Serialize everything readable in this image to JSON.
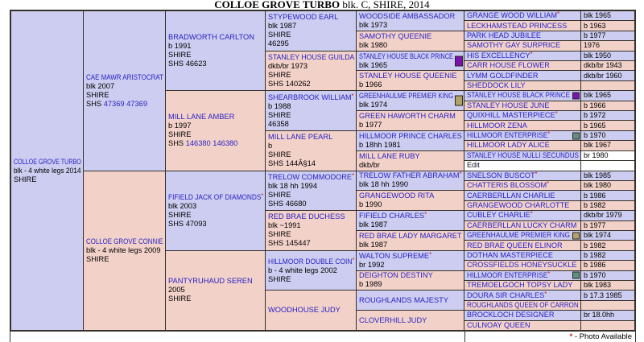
{
  "title": {
    "bold": "COLLOE GROVE TURBO",
    "rest": " blk. C, SHIRE, 2014"
  },
  "legend": {
    "star": "*",
    "text": " - Photo Available"
  },
  "colors": {
    "sire_bg": "#cccdf0",
    "dam_bg": "#f2d1c9",
    "border": "#34302a",
    "link": "#2a23c4",
    "star": "#cc2222",
    "square_purple": "#7b12b0",
    "square_teal": "#5f9181",
    "square_tan": "#b3a266"
  },
  "pedigree": {
    "cells": [
      {
        "col": 0,
        "row": 0,
        "span": 32,
        "sex": "s",
        "name": "COLLOE GROVE TURBO",
        "lines": [
          "blk - 4 white legs 2014",
          "SHIRE"
        ]
      },
      {
        "col": 1,
        "row": 0,
        "span": 16,
        "sex": "s",
        "name": "CAE MAWR ARISTOCRAT",
        "lines": [
          "blk 2007",
          "SHIRE",
          {
            "t": "SHS ",
            "link": "47369 47369"
          }
        ]
      },
      {
        "col": 1,
        "row": 16,
        "span": 16,
        "sex": "d",
        "name": "COLLOE GROVE CONNIE",
        "lines": [
          "blk - 4 white legs 2009",
          "SHIRE"
        ]
      },
      {
        "col": 2,
        "row": 0,
        "span": 8,
        "sex": "s",
        "name": "BRADWORTH CARLTON",
        "lines": [
          "b 1991",
          "SHIRE",
          "SHS 46623"
        ]
      },
      {
        "col": 2,
        "row": 8,
        "span": 8,
        "sex": "d",
        "name": "MILL LANE AMBER",
        "lines": [
          "b 1997",
          "SHIRE",
          {
            "t": "SHS ",
            "link": "146380 146380"
          }
        ]
      },
      {
        "col": 2,
        "row": 16,
        "span": 8,
        "sex": "s",
        "name": "FIFIELD JACK OF DIAMONDS",
        "star": true,
        "lines": [
          "blk 2003",
          "SHIRE",
          "SHS 47093"
        ]
      },
      {
        "col": 2,
        "row": 24,
        "span": 8,
        "sex": "d",
        "name": "PANTYRUHAUD SEREN",
        "lines": [
          "2005",
          "SHIRE"
        ]
      },
      {
        "col": 3,
        "row": 0,
        "span": 4,
        "sex": "s",
        "name": "STYPEWOOD EARL",
        "lines": [
          "blk 1987",
          "SHIRE",
          "46295"
        ]
      },
      {
        "col": 3,
        "row": 4,
        "span": 4,
        "sex": "d",
        "name": "STANLEY HOUSE GUILDA",
        "lines": [
          "dkb/br 1973",
          "SHIRE",
          "SHS 140262"
        ]
      },
      {
        "col": 3,
        "row": 8,
        "span": 4,
        "sex": "s",
        "name": "SHEARBROOK WILLIAM",
        "star": true,
        "lines": [
          "b 1988",
          "SHIRE",
          "46358"
        ]
      },
      {
        "col": 3,
        "row": 12,
        "span": 4,
        "sex": "d",
        "name": "MILL LANE PEARL",
        "lines": [
          "b",
          "SHIRE",
          "SHS 144Â§14"
        ]
      },
      {
        "col": 3,
        "row": 16,
        "span": 4,
        "sex": "s",
        "name": "TRELOW COMMODORE",
        "star": true,
        "lines": [
          "blk 18 hh 1994",
          "SHIRE",
          "SHS 46680"
        ]
      },
      {
        "col": 3,
        "row": 20,
        "span": 4,
        "sex": "d",
        "name": "RED BRAE DUCHESS",
        "lines": [
          "blk ~1991",
          "SHIRE",
          "SHS 145447"
        ]
      },
      {
        "col": 3,
        "row": 24,
        "span": 4,
        "sex": "s",
        "name": "HILLMOOR DOUBLE COIN",
        "star": true,
        "lines": [
          "b - 4 white legs 2002",
          "SHIRE"
        ]
      },
      {
        "col": 3,
        "row": 28,
        "span": 4,
        "sex": "d",
        "name": "WOODHOUSE JUDY",
        "lines": []
      },
      {
        "col": 4,
        "row": 0,
        "span": 2,
        "sex": "s",
        "name": "WOODSIDE AMBASSADOR",
        "lines": [
          "blk 1973"
        ]
      },
      {
        "col": 4,
        "row": 2,
        "span": 2,
        "sex": "d",
        "name": "SAMOTHY QUEENIE",
        "lines": [
          "blk 1980"
        ]
      },
      {
        "col": 4,
        "row": 4,
        "span": 2,
        "sex": "s",
        "name": "STANLEY HOUSE BLACK PRINCE",
        "lines": [
          "blk 1965"
        ],
        "square": "purple"
      },
      {
        "col": 4,
        "row": 6,
        "span": 2,
        "sex": "d",
        "name": "STANLEY HOUSE QUEENIE",
        "lines": [
          "b 1966"
        ]
      },
      {
        "col": 4,
        "row": 8,
        "span": 2,
        "sex": "s",
        "name": "GREENHAULME PREMIER KING",
        "lines": [
          "blk 1974"
        ],
        "square": "tan"
      },
      {
        "col": 4,
        "row": 10,
        "span": 2,
        "sex": "d",
        "name": "GREEN HAWORTH CHARM",
        "lines": [
          "b 1977"
        ]
      },
      {
        "col": 4,
        "row": 12,
        "span": 2,
        "sex": "s",
        "name": "HILLMOOR PRINCE CHARLES",
        "lines": [
          "b 18hh 1981"
        ]
      },
      {
        "col": 4,
        "row": 14,
        "span": 2,
        "sex": "d",
        "name": "MILL LANE RUBY",
        "lines": [
          "dkb/br"
        ]
      },
      {
        "col": 4,
        "row": 16,
        "span": 2,
        "sex": "s",
        "name": "TRELOW FATHER ABRAHAM",
        "star": true,
        "lines": [
          "blk 18 hh 1990"
        ]
      },
      {
        "col": 4,
        "row": 18,
        "span": 2,
        "sex": "d",
        "name": "GRANGEWOOD RITA",
        "lines": [
          "b 1990"
        ]
      },
      {
        "col": 4,
        "row": 20,
        "span": 2,
        "sex": "s",
        "name": "FIFIELD CHARLES",
        "star": true,
        "lines": [
          "blk 1987"
        ]
      },
      {
        "col": 4,
        "row": 22,
        "span": 2,
        "sex": "d",
        "name": "RED BRAE LADY MARGARET",
        "lines": [
          "blk 1987"
        ]
      },
      {
        "col": 4,
        "row": 24,
        "span": 2,
        "sex": "s",
        "name": "WALTON SUPREME",
        "star": true,
        "lines": [
          "br 1992"
        ]
      },
      {
        "col": 4,
        "row": 26,
        "span": 2,
        "sex": "d",
        "name": "DEIGHTON DESTINY",
        "lines": [
          "b 1989"
        ]
      },
      {
        "col": 4,
        "row": 28,
        "span": 2,
        "sex": "s",
        "name": "ROUGHLANDS MAJESTY",
        "lines": []
      },
      {
        "col": 4,
        "row": 30,
        "span": 2,
        "sex": "d",
        "name": "CLOVERHILL JUDY",
        "lines": []
      }
    ],
    "gen5": [
      {
        "name": "GRANGE WOOD WILLIAM",
        "star": true,
        "sex": "s",
        "year": "blk 1965"
      },
      {
        "name": "LECKHAMSTEAD PRINCESS",
        "sex": "d",
        "year": "b 1963"
      },
      {
        "name": "PARK HEAD JUBILEE",
        "sex": "s",
        "year": "b 1977"
      },
      {
        "name": "SAMOTHY GAY SURPRICE",
        "sex": "d",
        "year": "1976"
      },
      {
        "name": "HIS EXCELLENCY",
        "star": true,
        "sex": "s",
        "year": "blk 1950"
      },
      {
        "name": "CARR HOUSE FLOWER",
        "sex": "d",
        "year": "dkb/br 1943"
      },
      {
        "name": "LYMM GOLDFINDER",
        "sex": "s",
        "year": "dkb/br 1960"
      },
      {
        "name": "SHEDDOCK LILY",
        "sex": "d",
        "year": ""
      },
      {
        "name": "STANLEY HOUSE BLACK PRINCE",
        "sex": "s",
        "year": "blk 1965",
        "square": "purple"
      },
      {
        "name": "STANLEY HOUSE JUNE",
        "sex": "d",
        "year": "b 1966"
      },
      {
        "name": "QUIXHILL MASTERPIECE",
        "star": true,
        "sex": "s",
        "year": "b 1972"
      },
      {
        "name": "HILLMOOR ZENA",
        "sex": "d",
        "year": "b 1965"
      },
      {
        "name": "HILLMOOR ENTERPRISE",
        "star": true,
        "sex": "s",
        "year": "b 1970",
        "square": "teal"
      },
      {
        "name": "HILLMOOR LADY ALICE",
        "sex": "d",
        "year": "blk 1967"
      },
      {
        "name": "STANLEY HOUSE NULLI SECUNDUS",
        "sex": "s",
        "year": "br 1980",
        "year_white": true
      },
      {
        "name": "Edit",
        "sex": "w",
        "year": "",
        "edit": true
      },
      {
        "name": "SNELSON BUSCOT",
        "star": true,
        "sex": "s",
        "year": "blk 1985"
      },
      {
        "name": "CHATTERIS BLOSSOM",
        "star": true,
        "sex": "d",
        "year": "blk 1980"
      },
      {
        "name": "CAERBERLLAN CHARLIE",
        "sex": "s",
        "year": "b 1986"
      },
      {
        "name": "GRANGEWOOD CHARLOTTE",
        "sex": "d",
        "year": "b 1982"
      },
      {
        "name": "CUBLEY CHARLIE",
        "star": true,
        "sex": "s",
        "year": "dkb/br 1979"
      },
      {
        "name": "CAERBERLLAN LUCKY CHARM",
        "sex": "d",
        "year": "b 1977"
      },
      {
        "name": "GREENHAULME PREMIER KING",
        "sex": "s",
        "year": "blk 1974",
        "square": "tan"
      },
      {
        "name": "RED BRAE QUEEN ELINOR",
        "sex": "d",
        "year": "b 1982"
      },
      {
        "name": "DOTHAN MASTERPIECE",
        "sex": "s",
        "year": "b 1982"
      },
      {
        "name": "CROSSFIELDS HONEYSUCKLE",
        "sex": "d",
        "year": "b 1986"
      },
      {
        "name": "HILLMOOR ENTERPRISE",
        "star": true,
        "sex": "s",
        "year": "b 1970",
        "square": "teal"
      },
      {
        "name": "TREMOELGOCH TOPSY LADY",
        "sex": "d",
        "year": "blk 1983"
      },
      {
        "name": "DOURA SIR CHARLES",
        "star": true,
        "sex": "s",
        "year": "b 17.3 1985"
      },
      {
        "name": "ROUGHLANDS QUEEN OF CARRON",
        "sex": "d",
        "year": ""
      },
      {
        "name": "BROCKLOCH DESIGNER",
        "sex": "s",
        "year": "br 18.0hh"
      },
      {
        "name": "CULNOAY QUEEN",
        "sex": "d",
        "year": ""
      }
    ]
  }
}
